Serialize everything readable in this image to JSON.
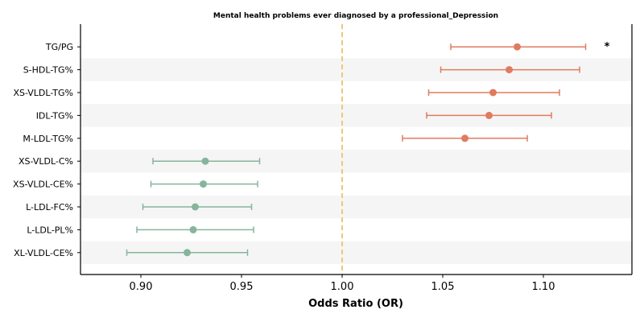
{
  "chart_data": {
    "type": "forest",
    "title": "Mental health problems ever diagnosed by a professional_Depression",
    "xlabel": "Odds Ratio (OR)",
    "xlim": [
      0.87,
      1.144
    ],
    "xticks": [
      "0.90",
      "0.95",
      "1.00",
      "1.05",
      "1.10"
    ],
    "xtick_values": [
      0.9,
      0.95,
      1.0,
      1.05,
      1.1
    ],
    "reference_line": 1.0,
    "colors": {
      "positive": "#e07b5f",
      "negative": "#86b59c",
      "reference": "#f0c777",
      "band": "#f5f5f5"
    },
    "rows": [
      {
        "label": "TG/PG",
        "or": 1.087,
        "lo": 1.054,
        "hi": 1.121,
        "sig": "*"
      },
      {
        "label": "S-HDL-TG%",
        "or": 1.083,
        "lo": 1.049,
        "hi": 1.118,
        "sig": ""
      },
      {
        "label": "XS-VLDL-TG%",
        "or": 1.075,
        "lo": 1.043,
        "hi": 1.108,
        "sig": ""
      },
      {
        "label": "IDL-TG%",
        "or": 1.073,
        "lo": 1.042,
        "hi": 1.104,
        "sig": ""
      },
      {
        "label": "M-LDL-TG%",
        "or": 1.061,
        "lo": 1.03,
        "hi": 1.092,
        "sig": ""
      },
      {
        "label": "XS-VLDL-C%",
        "or": 0.932,
        "lo": 0.906,
        "hi": 0.959,
        "sig": ""
      },
      {
        "label": "XS-VLDL-CE%",
        "or": 0.931,
        "lo": 0.905,
        "hi": 0.958,
        "sig": ""
      },
      {
        "label": "L-LDL-FC%",
        "or": 0.927,
        "lo": 0.901,
        "hi": 0.955,
        "sig": ""
      },
      {
        "label": "L-LDL-PL%",
        "or": 0.926,
        "lo": 0.898,
        "hi": 0.956,
        "sig": ""
      },
      {
        "label": "XL-VLDL-CE%",
        "or": 0.923,
        "lo": 0.893,
        "hi": 0.953,
        "sig": ""
      }
    ]
  }
}
